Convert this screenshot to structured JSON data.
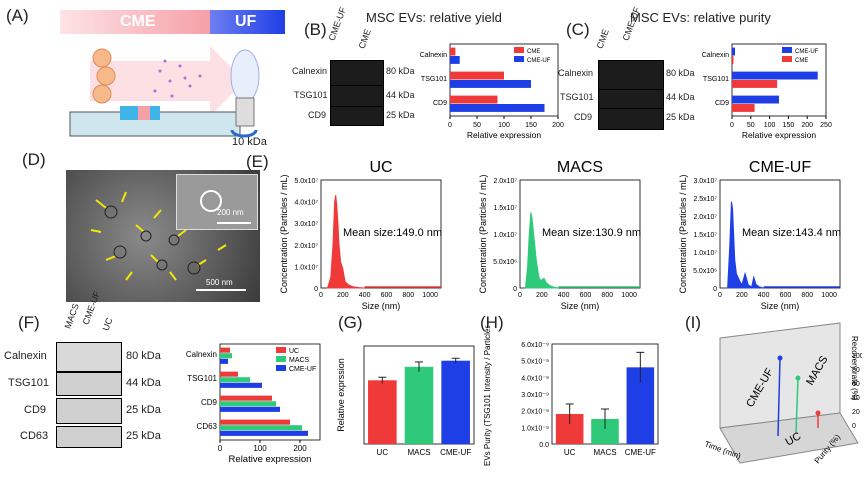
{
  "panels": {
    "A": {
      "label": "(A)",
      "cme": "CME",
      "uf": "UF",
      "kda": "10 kDa"
    },
    "B": {
      "label": "(B)",
      "title": "MSC EVs: relative yield",
      "lanes": [
        "CME-UF",
        "CME"
      ],
      "bands": [
        "Calnexin",
        "TSG101",
        "CD9"
      ],
      "kda": [
        "80 kDa",
        "44 kDa",
        "25 kDa"
      ]
    },
    "C": {
      "label": "(C)",
      "title": "MSC EVs: relative purity",
      "lanes": [
        "CME",
        "CME-UF"
      ],
      "bands": [
        "Calnexin",
        "TSG101",
        "CD9"
      ],
      "kda": [
        "80 kDa",
        "44 kDa",
        "25 kDa"
      ]
    },
    "D": {
      "label": "(D)",
      "scale_inset": "200 nm",
      "scale_main": "500 nm"
    },
    "E": {
      "label": "(E)"
    },
    "F": {
      "label": "(F)",
      "lanes": [
        "MACS",
        "CME-UF",
        "UC"
      ],
      "bands": [
        "Calnexin",
        "TSG101",
        "CD9",
        "CD63"
      ],
      "kda": [
        "80 kDa",
        "44 kDa",
        "25 kDa",
        "25 kDa"
      ]
    },
    "G": {
      "label": "(G)"
    },
    "H": {
      "label": "(H)"
    },
    "I": {
      "label": "(I)"
    }
  },
  "colors": {
    "red": "#f03a3a",
    "blue": "#1f3fe6",
    "green": "#2fc97a",
    "cme_bar": "#f6a0a8"
  },
  "chart_data": [
    {
      "id": "B",
      "type": "bar",
      "orientation": "horizontal",
      "categories": [
        "Calnexin",
        "TSG101",
        "CD9"
      ],
      "series": [
        {
          "name": "CME",
          "values": [
            10,
            100,
            88
          ]
        },
        {
          "name": "CME-UF",
          "values": [
            18,
            150,
            175
          ]
        }
      ],
      "xlabel": "Relative expression",
      "xlim": [
        0,
        200
      ],
      "xticks": [
        0,
        50,
        100,
        150,
        200
      ],
      "legend": "top-right"
    },
    {
      "id": "C",
      "type": "bar",
      "orientation": "horizontal",
      "categories": [
        "Calnexin",
        "TSG101",
        "CD9"
      ],
      "series": [
        {
          "name": "CME-UF",
          "values": [
            8,
            228,
            125
          ]
        },
        {
          "name": "CME",
          "values": [
            4,
            120,
            60
          ]
        }
      ],
      "xlabel": "Relative expression",
      "xlim": [
        0,
        250
      ],
      "xticks": [
        0,
        50,
        100,
        150,
        200,
        250
      ],
      "legend": "top-right"
    },
    {
      "id": "E1",
      "type": "area",
      "title": "UC",
      "ylabel": "Concentration (Particles / mL)",
      "xlabel": "Size (nm)",
      "annotation": "Mean size:149.0 nm",
      "xlim": [
        0,
        1100
      ],
      "ylim": [
        0,
        50000000
      ],
      "yticks": [
        "0",
        "1.0x10⁷",
        "2.0x10⁷",
        "3.0x10⁷",
        "4.0x10⁷",
        "5.0x10⁷"
      ],
      "xticks": [
        0,
        200,
        400,
        600,
        800,
        1000
      ],
      "x": [
        60,
        90,
        110,
        125,
        135,
        145,
        155,
        165,
        180,
        200,
        220,
        240,
        260,
        300,
        350,
        400
      ],
      "y": [
        0,
        5000000,
        20000000,
        40000000,
        43000000,
        38000000,
        30000000,
        20000000,
        12000000,
        9000000,
        3000000,
        2000000,
        1200000,
        500000,
        200000,
        0
      ]
    },
    {
      "id": "E2",
      "type": "area",
      "title": "MACS",
      "ylabel": "Concentration (Particles / mL)",
      "xlabel": "Size (nm)",
      "annotation": "Mean size:130.9 nm",
      "xlim": [
        0,
        1100
      ],
      "ylim": [
        0,
        20000000
      ],
      "yticks": [
        "0",
        "5.0x10⁶",
        "1.0x10⁷",
        "1.5x10⁷",
        "2.0x10⁷"
      ],
      "xticks": [
        0,
        200,
        400,
        600,
        800,
        1000
      ],
      "x": [
        50,
        70,
        85,
        100,
        110,
        120,
        135,
        150,
        165,
        180,
        200,
        220,
        240,
        270,
        300,
        350
      ],
      "y": [
        0,
        4000000,
        10000000,
        14000000,
        13000000,
        11000000,
        8000000,
        5000000,
        3000000,
        1500000,
        1500000,
        1800000,
        1000000,
        500000,
        200000,
        0
      ]
    },
    {
      "id": "E3",
      "type": "area",
      "title": "CME-UF",
      "ylabel": "Concentration (Particles / mL)",
      "xlabel": "Size (nm)",
      "annotation": "Mean size:143.4 nm",
      "xlim": [
        0,
        1100
      ],
      "ylim": [
        0,
        30000000
      ],
      "yticks": [
        "0",
        "5.0x10⁶",
        "1.0x10⁷",
        "1.5x10⁷",
        "2.0x10⁷",
        "2.5x10⁷",
        "3.0x10⁷"
      ],
      "xticks": [
        0,
        200,
        400,
        600,
        800,
        1000
      ],
      "x": [
        70,
        90,
        105,
        115,
        125,
        135,
        150,
        165,
        180,
        200,
        230,
        260,
        290,
        310,
        330,
        360,
        400
      ],
      "y": [
        0,
        12000000,
        24000000,
        22000000,
        15000000,
        8000000,
        4000000,
        3000000,
        2000000,
        800000,
        4000000,
        800000,
        300000,
        3000000,
        1000000,
        300000,
        0
      ]
    },
    {
      "id": "F",
      "type": "bar",
      "orientation": "horizontal",
      "categories": [
        "Calnexin",
        "TSG101",
        "CD9",
        "CD63"
      ],
      "series": [
        {
          "name": "UC",
          "values": [
            25,
            45,
            130,
            175
          ]
        },
        {
          "name": "MACS",
          "values": [
            30,
            75,
            140,
            205
          ]
        },
        {
          "name": "CME-UF",
          "values": [
            20,
            105,
            150,
            220
          ]
        }
      ],
      "xlabel": "Relative expression",
      "xlim": [
        0,
        250
      ],
      "xticks": [
        0,
        100,
        200
      ],
      "legend": "top-right"
    },
    {
      "id": "G",
      "type": "bar",
      "categories": [
        "UC",
        "MACS",
        "CME-UF"
      ],
      "values": [
        520,
        630,
        680
      ],
      "errors": [
        25,
        40,
        20
      ],
      "ylabel": "Relative exprssion",
      "ylim": [
        0,
        800
      ]
    },
    {
      "id": "H",
      "type": "bar",
      "categories": [
        "UC",
        "MACS",
        "CME-UF"
      ],
      "values": [
        1.8e-09,
        1.5e-09,
        4.6e-09
      ],
      "errors": [
        6e-10,
        6e-10,
        9e-10
      ],
      "ylabel": "EVs Purity (TSG101 Intensity / Particles)",
      "ylim": [
        0,
        6e-09
      ],
      "yticks": [
        "0.0",
        "1.0x10⁻⁹",
        "2.0x10⁻⁹",
        "3.0x10⁻⁹",
        "4.0x10⁻⁹",
        "5.0x10⁻⁹",
        "6.0x10⁻⁹"
      ]
    },
    {
      "id": "I",
      "type": "scatter",
      "title": "",
      "labels": [
        "CME-UF",
        "MACS",
        "UC"
      ],
      "axis_labels": {
        "z": "Recovery rate (%)",
        "x": "Time (min)",
        "y": "Purity (%)"
      },
      "z_ticks": [
        0,
        20,
        40,
        60,
        80,
        100
      ]
    }
  ]
}
